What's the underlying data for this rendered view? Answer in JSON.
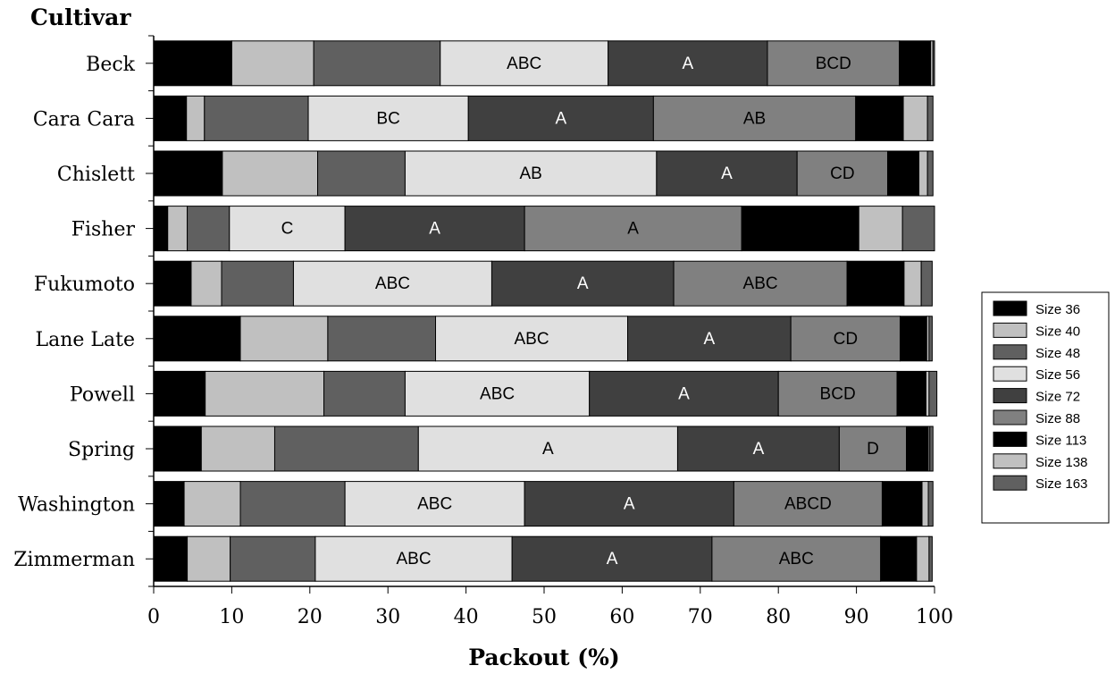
{
  "chart_data": {
    "type": "bar",
    "orientation": "horizontal",
    "stacked": true,
    "ylabel": "Cultivar",
    "xlabel": "Packout (%)",
    "xlim": [
      0,
      100
    ],
    "xticks": [
      0,
      10,
      20,
      30,
      40,
      50,
      60,
      70,
      80,
      90,
      100
    ],
    "grid": false,
    "legend_position": "right",
    "categories": [
      "Beck",
      "Cara Cara",
      "Chislett",
      "Fisher",
      "Fukumoto",
      "Lane Late",
      "Powell",
      "Spring",
      "Washington",
      "Zimmerman"
    ],
    "series": [
      {
        "name": "Size 36",
        "color": "#000000",
        "values": [
          10.0,
          4.2,
          8.8,
          1.8,
          4.8,
          11.1,
          6.6,
          6.1,
          3.9,
          4.3
        ]
      },
      {
        "name": "Size 40",
        "color": "#c0c0c0",
        "values": [
          10.5,
          2.3,
          12.2,
          2.5,
          3.9,
          11.2,
          15.2,
          9.4,
          7.2,
          5.5
        ]
      },
      {
        "name": "Size 48",
        "color": "#606060",
        "values": [
          16.2,
          13.3,
          11.2,
          5.4,
          9.2,
          13.8,
          10.4,
          18.4,
          13.4,
          10.9
        ]
      },
      {
        "name": "Size 56",
        "color": "#e0e0e0",
        "values": [
          21.5,
          20.5,
          32.2,
          14.8,
          25.4,
          24.6,
          23.6,
          33.2,
          23.0,
          25.2
        ]
      },
      {
        "name": "Size 72",
        "color": "#404040",
        "values": [
          20.4,
          23.7,
          18.0,
          23.0,
          23.3,
          20.9,
          24.2,
          20.7,
          26.8,
          25.6
        ]
      },
      {
        "name": "Size 88",
        "color": "#808080",
        "values": [
          16.9,
          25.9,
          11.6,
          27.8,
          22.2,
          14.0,
          15.2,
          8.6,
          19.0,
          21.6
        ]
      },
      {
        "name": "Size 113",
        "color": "#000000",
        "values": [
          4.0,
          6.1,
          4.0,
          15.0,
          7.3,
          3.4,
          3.7,
          2.8,
          5.1,
          4.6
        ]
      },
      {
        "name": "Size 138",
        "color": "#c0c0c0",
        "values": [
          0.3,
          3.1,
          1.1,
          5.6,
          2.2,
          0.3,
          0.4,
          0.2,
          0.8,
          1.6
        ]
      },
      {
        "name": "Size 163",
        "color": "#606060",
        "values": [
          0.2,
          0.7,
          0.7,
          4.1,
          1.4,
          0.4,
          1.0,
          0.4,
          0.6,
          0.4
        ]
      }
    ],
    "annotations": [
      {
        "category": "Beck",
        "series": "Size 56",
        "text": "ABC"
      },
      {
        "category": "Beck",
        "series": "Size 72",
        "text": "A"
      },
      {
        "category": "Beck",
        "series": "Size 88",
        "text": "BCD"
      },
      {
        "category": "Cara Cara",
        "series": "Size 56",
        "text": "BC"
      },
      {
        "category": "Cara Cara",
        "series": "Size 72",
        "text": "A"
      },
      {
        "category": "Cara Cara",
        "series": "Size 88",
        "text": "AB"
      },
      {
        "category": "Chislett",
        "series": "Size 56",
        "text": "AB"
      },
      {
        "category": "Chislett",
        "series": "Size 72",
        "text": "A"
      },
      {
        "category": "Chislett",
        "series": "Size 88",
        "text": "CD"
      },
      {
        "category": "Fisher",
        "series": "Size 56",
        "text": "C"
      },
      {
        "category": "Fisher",
        "series": "Size 72",
        "text": "A"
      },
      {
        "category": "Fisher",
        "series": "Size 88",
        "text": "A"
      },
      {
        "category": "Fukumoto",
        "series": "Size 56",
        "text": "ABC"
      },
      {
        "category": "Fukumoto",
        "series": "Size 72",
        "text": "A"
      },
      {
        "category": "Fukumoto",
        "series": "Size 88",
        "text": "ABC"
      },
      {
        "category": "Lane Late",
        "series": "Size 56",
        "text": "ABC"
      },
      {
        "category": "Lane Late",
        "series": "Size 72",
        "text": "A"
      },
      {
        "category": "Lane Late",
        "series": "Size 88",
        "text": "CD"
      },
      {
        "category": "Powell",
        "series": "Size 56",
        "text": "ABC"
      },
      {
        "category": "Powell",
        "series": "Size 72",
        "text": "A"
      },
      {
        "category": "Powell",
        "series": "Size 88",
        "text": "BCD"
      },
      {
        "category": "Spring",
        "series": "Size 56",
        "text": "A"
      },
      {
        "category": "Spring",
        "series": "Size 72",
        "text": "A"
      },
      {
        "category": "Spring",
        "series": "Size 88",
        "text": "D"
      },
      {
        "category": "Washington",
        "series": "Size 56",
        "text": "ABC"
      },
      {
        "category": "Washington",
        "series": "Size 72",
        "text": "A"
      },
      {
        "category": "Washington",
        "series": "Size 88",
        "text": "ABCD"
      },
      {
        "category": "Zimmerman",
        "series": "Size 56",
        "text": "ABC"
      },
      {
        "category": "Zimmerman",
        "series": "Size 72",
        "text": "A"
      },
      {
        "category": "Zimmerman",
        "series": "Size 88",
        "text": "ABC"
      }
    ]
  }
}
